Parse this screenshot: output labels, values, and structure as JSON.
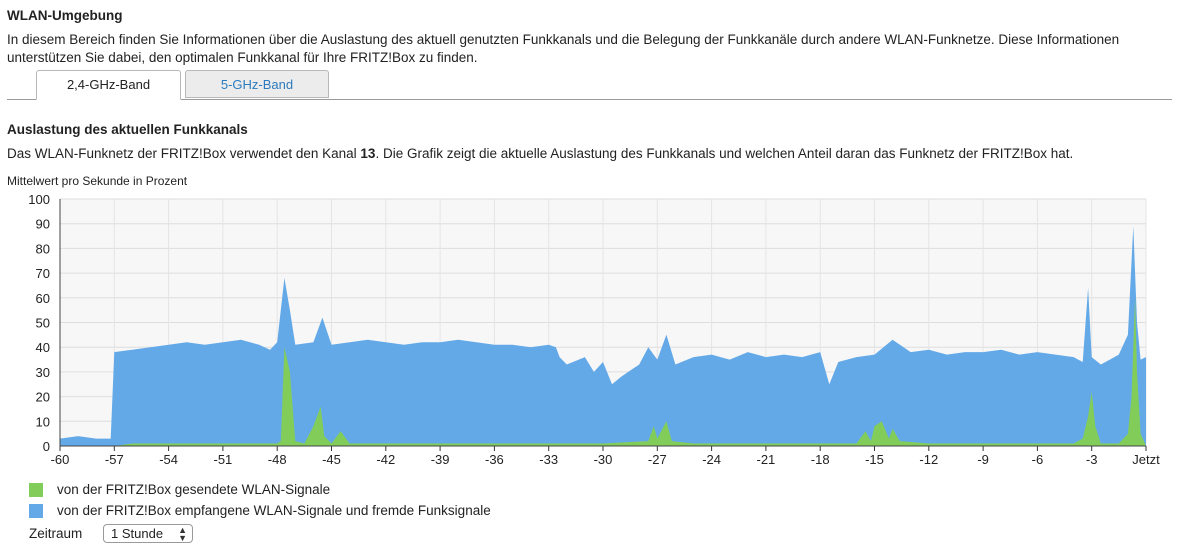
{
  "page": {
    "heading": "WLAN-Umgebung",
    "intro": "In diesem Bereich finden Sie Informationen über die Auslastung des aktuell genutzten Funkkanals und die Belegung der Funkkanäle durch andere WLAN-Funknetze. Diese Informationen unterstützen Sie dabei, den optimalen Funkkanal für Ihre FRITZ!Box zu finden."
  },
  "tabs": [
    {
      "label": "2,4-GHz-Band",
      "active": true
    },
    {
      "label": "5-GHz-Band",
      "active": false
    }
  ],
  "section": {
    "title": "Auslastung des aktuellen Funkkanals",
    "desc_before": "Das WLAN-Funknetz der FRITZ!Box verwendet den Kanal ",
    "channel": "13",
    "desc_after": ". Die Grafik zeigt die aktuelle Auslastung des Funkkanals und welchen Anteil daran das Funknetz der FRITZ!Box hat."
  },
  "chart_data": {
    "type": "area",
    "ylabel": "Mittelwert pro Sekunde in Prozent",
    "ylim": [
      0,
      100
    ],
    "yticks": [
      "0",
      "10",
      "20",
      "30",
      "40",
      "50",
      "60",
      "70",
      "80",
      "90",
      "100"
    ],
    "xlim": [
      -60,
      0
    ],
    "xticks": [
      {
        "v": -60,
        "label": "-60"
      },
      {
        "v": -57,
        "label": "-57"
      },
      {
        "v": -54,
        "label": "-54"
      },
      {
        "v": -51,
        "label": "-51"
      },
      {
        "v": -48,
        "label": "-48"
      },
      {
        "v": -45,
        "label": "-45"
      },
      {
        "v": -42,
        "label": "-42"
      },
      {
        "v": -39,
        "label": "-39"
      },
      {
        "v": -36,
        "label": "-36"
      },
      {
        "v": -33,
        "label": "-33"
      },
      {
        "v": -30,
        "label": "-30"
      },
      {
        "v": -27,
        "label": "-27"
      },
      {
        "v": -24,
        "label": "-24"
      },
      {
        "v": -21,
        "label": "-21"
      },
      {
        "v": -18,
        "label": "-18"
      },
      {
        "v": -15,
        "label": "-15"
      },
      {
        "v": -12,
        "label": "-12"
      },
      {
        "v": -9,
        "label": "-9"
      },
      {
        "v": -6,
        "label": "-6"
      },
      {
        "v": -3,
        "label": "-3"
      },
      {
        "v": 0,
        "label": "Jetzt"
      }
    ],
    "grid": true,
    "series": [
      {
        "name": "von der FRITZ!Box empfangene WLAN-Signale und fremde Funksignale",
        "color": "#63a9e8",
        "points": [
          [
            -60,
            3
          ],
          [
            -59,
            4
          ],
          [
            -58,
            3
          ],
          [
            -57.2,
            3
          ],
          [
            -57,
            38
          ],
          [
            -56,
            39
          ],
          [
            -55,
            40
          ],
          [
            -54,
            41
          ],
          [
            -53,
            42
          ],
          [
            -52,
            41
          ],
          [
            -51,
            42
          ],
          [
            -50,
            43
          ],
          [
            -49,
            41
          ],
          [
            -48.4,
            39
          ],
          [
            -48,
            42
          ],
          [
            -47.6,
            68
          ],
          [
            -47.3,
            55
          ],
          [
            -47,
            41
          ],
          [
            -46,
            42
          ],
          [
            -45.5,
            52
          ],
          [
            -45,
            41
          ],
          [
            -44,
            42
          ],
          [
            -43,
            43
          ],
          [
            -42,
            42
          ],
          [
            -41,
            41
          ],
          [
            -40,
            42
          ],
          [
            -39,
            42
          ],
          [
            -38,
            43
          ],
          [
            -37,
            42
          ],
          [
            -36,
            41
          ],
          [
            -35,
            41
          ],
          [
            -34,
            40
          ],
          [
            -33,
            41
          ],
          [
            -32.6,
            40
          ],
          [
            -32.4,
            36
          ],
          [
            -32,
            33
          ],
          [
            -31,
            36
          ],
          [
            -30.5,
            30
          ],
          [
            -30,
            34
          ],
          [
            -29.5,
            25
          ],
          [
            -29,
            28
          ],
          [
            -28,
            33
          ],
          [
            -27.5,
            40
          ],
          [
            -27,
            35
          ],
          [
            -26.5,
            45
          ],
          [
            -26,
            33
          ],
          [
            -25,
            36
          ],
          [
            -24,
            37
          ],
          [
            -23,
            35
          ],
          [
            -22,
            38
          ],
          [
            -21,
            36
          ],
          [
            -20,
            37
          ],
          [
            -19,
            36
          ],
          [
            -18,
            38
          ],
          [
            -17.5,
            25
          ],
          [
            -17,
            34
          ],
          [
            -16,
            36
          ],
          [
            -15,
            37
          ],
          [
            -14,
            43
          ],
          [
            -13,
            38
          ],
          [
            -12,
            39
          ],
          [
            -11,
            37
          ],
          [
            -10,
            38
          ],
          [
            -9,
            38
          ],
          [
            -8,
            39
          ],
          [
            -7,
            37
          ],
          [
            -6,
            38
          ],
          [
            -5,
            37
          ],
          [
            -4,
            36
          ],
          [
            -3.5,
            34
          ],
          [
            -3.2,
            64
          ],
          [
            -3,
            36
          ],
          [
            -2.5,
            33
          ],
          [
            -2,
            35
          ],
          [
            -1.5,
            37
          ],
          [
            -1,
            45
          ],
          [
            -0.7,
            89
          ],
          [
            -0.5,
            50
          ],
          [
            -0.3,
            35
          ],
          [
            0,
            36
          ]
        ]
      },
      {
        "name": "von der FRITZ!Box gesendete WLAN-Signale",
        "color": "#82cd5a",
        "points": [
          [
            -60,
            0
          ],
          [
            -57,
            0
          ],
          [
            -56,
            1
          ],
          [
            -52,
            1
          ],
          [
            -48,
            1
          ],
          [
            -47.8,
            2
          ],
          [
            -47.6,
            40
          ],
          [
            -47.3,
            30
          ],
          [
            -47,
            2
          ],
          [
            -46.5,
            1
          ],
          [
            -46,
            8
          ],
          [
            -45.6,
            16
          ],
          [
            -45.4,
            4
          ],
          [
            -45,
            1
          ],
          [
            -44.5,
            6
          ],
          [
            -44,
            1
          ],
          [
            -40,
            1
          ],
          [
            -33,
            1
          ],
          [
            -30,
            1
          ],
          [
            -27.5,
            2
          ],
          [
            -27.2,
            8
          ],
          [
            -27,
            3
          ],
          [
            -26.5,
            10
          ],
          [
            -26.2,
            2
          ],
          [
            -25,
            1
          ],
          [
            -20,
            1
          ],
          [
            -16,
            1
          ],
          [
            -15.5,
            6
          ],
          [
            -15.2,
            2
          ],
          [
            -15,
            8
          ],
          [
            -14.6,
            10
          ],
          [
            -14.2,
            3
          ],
          [
            -14,
            7
          ],
          [
            -13.6,
            2
          ],
          [
            -12,
            1
          ],
          [
            -8,
            1
          ],
          [
            -4,
            1
          ],
          [
            -3.5,
            3
          ],
          [
            -3.2,
            12
          ],
          [
            -3,
            22
          ],
          [
            -2.8,
            8
          ],
          [
            -2.5,
            1
          ],
          [
            -1.5,
            1
          ],
          [
            -1,
            5
          ],
          [
            -0.8,
            20
          ],
          [
            -0.6,
            60
          ],
          [
            -0.5,
            30
          ],
          [
            -0.3,
            5
          ],
          [
            0,
            0
          ]
        ]
      }
    ]
  },
  "legend": [
    {
      "label": "von der FRITZ!Box gesendete WLAN-Signale",
      "color": "#82cd5a"
    },
    {
      "label": "von der FRITZ!Box empfangene WLAN-Signale und fremde Funksignale",
      "color": "#63a9e8"
    }
  ],
  "controls": {
    "zeitraum_label": "Zeitraum",
    "zeitraum_value": "1 Stunde"
  }
}
